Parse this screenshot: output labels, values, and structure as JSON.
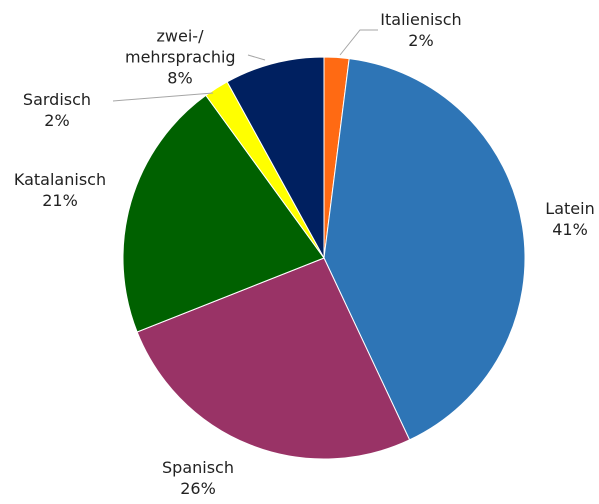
{
  "chart_data": {
    "type": "pie",
    "categories": [
      "Italienisch",
      "Latein",
      "Spanisch",
      "Katalanisch",
      "Sardisch",
      "zwei-/ mehrsprachig"
    ],
    "values": [
      2,
      41,
      26,
      21,
      2,
      8
    ],
    "value_labels": [
      "2%",
      "41%",
      "26%",
      "21%",
      "2%",
      "8%"
    ],
    "colors": [
      "#ff6a13",
      "#2e75b6",
      "#993366",
      "#006100",
      "#ffff00",
      "#002060"
    ]
  }
}
